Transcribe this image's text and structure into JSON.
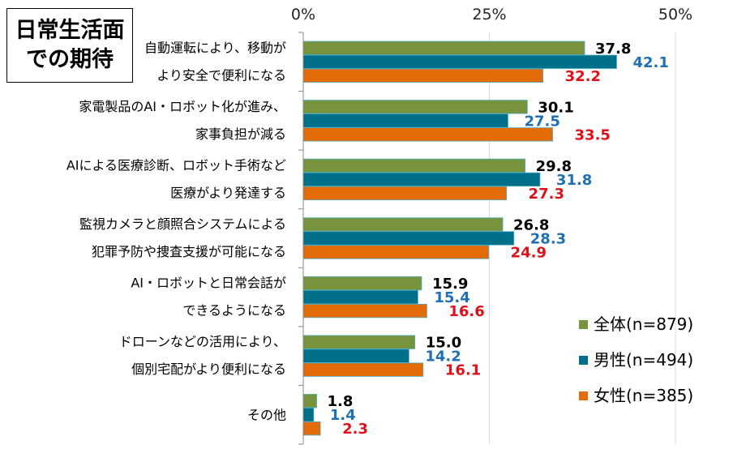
{
  "title": {
    "line1": "日常生活面",
    "line2": "での期待"
  },
  "chart_data": {
    "type": "bar",
    "orientation": "horizontal",
    "title": "日常生活面での期待",
    "xlim": [
      0,
      50
    ],
    "x_ticks": [
      "0%",
      "25%",
      "50%"
    ],
    "x_tick_values": [
      0,
      25,
      50
    ],
    "grid": true,
    "legend_position": "bottom-right",
    "categories": [
      [
        "自動運転により、移動が",
        "より安全で便利になる"
      ],
      [
        "家電製品のAI・ロボット化が進み、",
        "家事負担が減る"
      ],
      [
        "AIによる医療診断、ロボット手術など",
        "医療がより発達する"
      ],
      [
        "監視カメラと顔照合システムによる",
        "犯罪予防や捜査支援が可能になる"
      ],
      [
        "AI・ロボットと日常会話が",
        "できるようになる"
      ],
      [
        "ドローンなどの活用により、",
        "個別宅配がより便利になる"
      ],
      [
        "その他"
      ]
    ],
    "series": [
      {
        "name": "全体(n=879)",
        "color": "#77933C",
        "label_color": "#000000",
        "values": [
          37.8,
          30.1,
          29.8,
          26.8,
          15.9,
          15.0,
          1.8
        ],
        "labels": [
          "37.8",
          "30.1",
          "29.8",
          "26.8",
          "15.9",
          "15.0",
          "1.8"
        ]
      },
      {
        "name": "男性(n=494)",
        "color": "#006F8A",
        "label_color": "#1F6FB5",
        "values": [
          42.1,
          27.5,
          31.8,
          28.3,
          15.4,
          14.2,
          1.4
        ],
        "labels": [
          "42.1",
          "27.5",
          "31.8",
          "28.3",
          "15.4",
          "14.2",
          "1.4"
        ]
      },
      {
        "name": "女性(n=385)",
        "color": "#E36C09",
        "label_color": "#E0101A",
        "values": [
          32.2,
          33.5,
          27.3,
          24.9,
          16.6,
          16.1,
          2.3
        ],
        "labels": [
          "32.2",
          "33.5",
          "27.3",
          "24.9",
          "16.6",
          "16.1",
          "2.3"
        ]
      }
    ]
  }
}
